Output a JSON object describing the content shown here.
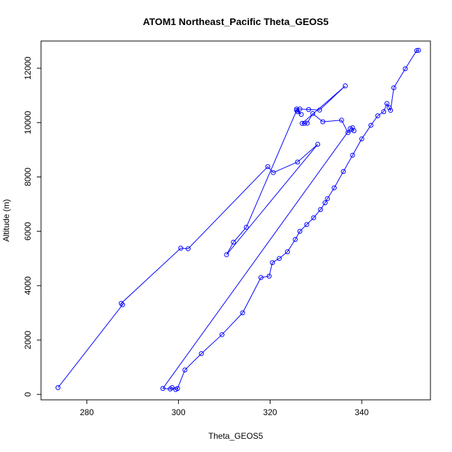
{
  "chart_data": {
    "type": "scatter",
    "title": "ATOM1 Northeast_Pacific Theta_GEOS5",
    "xlabel": "Theta_GEOS5",
    "ylabel": "Altitude (m)",
    "xlim": [
      270,
      355
    ],
    "ylim": [
      -200,
      13000
    ],
    "xticks": [
      280,
      300,
      320,
      340
    ],
    "yticks": [
      0,
      2000,
      4000,
      6000,
      8000,
      10000,
      12000
    ],
    "grid": false,
    "legend": "none",
    "color": "#0000ff",
    "marker": "open-circle",
    "connect_points": true,
    "x": [
      273.7,
      287.8,
      287.5,
      300.5,
      302.1,
      319.5,
      320.7,
      326.0,
      330.4,
      310.5,
      312.0,
      314.8,
      325.8,
      326.0,
      326.8,
      325.8,
      326.5,
      328.4,
      330.8,
      336.4,
      327.0,
      327.5,
      328.1,
      329.3,
      331.5,
      335.6,
      337.0,
      338.3,
      338.0,
      337.5,
      296.6,
      298.2,
      298.6,
      299.4,
      299.8,
      301.4,
      305.0,
      309.5,
      314.0,
      318.0,
      319.8,
      320.5,
      322.0,
      323.8,
      325.5,
      326.5,
      328.0,
      329.5,
      331.0,
      332.0,
      332.5,
      334.0,
      336.0,
      338.0,
      340.0,
      342.0,
      343.5,
      344.8,
      345.5,
      346.0,
      346.3,
      347.0,
      349.5,
      352.0,
      352.4
    ],
    "y": [
      250,
      3300,
      3350,
      5380,
      5360,
      8380,
      8160,
      8550,
      9200,
      5140,
      5600,
      6150,
      10450,
      10400,
      10300,
      10500,
      10500,
      10480,
      10460,
      11350,
      9970,
      9970,
      9980,
      10330,
      10030,
      10090,
      9630,
      9700,
      9810,
      9780,
      220,
      200,
      250,
      180,
      220,
      900,
      1500,
      2200,
      3000,
      4300,
      4350,
      4850,
      5000,
      5250,
      5700,
      6000,
      6250,
      6500,
      6800,
      7050,
      7200,
      7600,
      8200,
      8800,
      9400,
      9900,
      10250,
      10400,
      10700,
      10550,
      10450,
      11280,
      11980,
      12650,
      12660
    ]
  }
}
